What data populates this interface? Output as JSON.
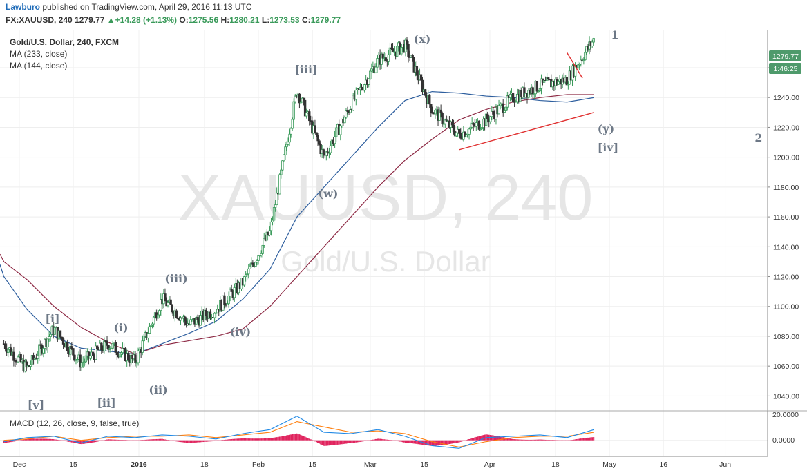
{
  "header": {
    "author": "Lawburo",
    "published_text": "published on TradingView.com, April 29, 2016 11:13 UTC",
    "symbol": "FX:XAUUSD, 240",
    "last_price": "1279.77",
    "change": "▲+14.28 (+1.13%)",
    "open_label": "O:",
    "open_value": "1275.56",
    "high_label": "H:",
    "high_value": "1280.21",
    "low_label": "L:",
    "low_value": "1273.53",
    "close_label": "C:",
    "close_value": "1279.77"
  },
  "legend": {
    "title": "Gold/U.S. Dollar, 240, FXCM",
    "ma1": "MA (233, close)",
    "ma2": "MA (144, close)"
  },
  "watermark": {
    "symbol": "XAUUSD, 240",
    "name": "Gold/U.S. Dollar"
  },
  "price_badge": {
    "price": "1279.77",
    "countdown": "1:46:25"
  },
  "wave_labels": [
    "1",
    "2",
    "(x)",
    "[iii]",
    "(w)",
    "(y)",
    "[iv]",
    "(iii)",
    "[i]",
    "(i)",
    "(iv)",
    "[v]",
    "[ii]",
    "(ii)"
  ],
  "macd": {
    "label": "MACD (12, 26, close, 9, false, true)",
    "ticks": [
      "20.0000",
      "0.0000"
    ]
  },
  "colors": {
    "up_candle": "#3a9a5a",
    "down_candle": "#333333",
    "ma233": "#8e2a45",
    "ma144": "#2d5e9e",
    "trendline": "#e03030",
    "macd_line": "#1e88e5",
    "signal_line": "#ff7f0e",
    "histogram": "#e0245e",
    "wave_label": "#6d7886",
    "badge": "#4e9a6b"
  },
  "chart_data": {
    "type": "line",
    "title": "Gold/U.S. Dollar, 240, FXCM",
    "x_ticks": [
      "Dec",
      "15",
      "2016",
      "18",
      "Feb",
      "15",
      "Mar",
      "15",
      "Apr",
      "18",
      "May",
      "16",
      "Jun"
    ],
    "y_ticks": [
      "1040.00",
      "1060.00",
      "1080.00",
      "1100.00",
      "1120.00",
      "1140.00",
      "1160.00",
      "1180.00",
      "1200.00",
      "1220.00",
      "1240.00",
      "1260.00"
    ],
    "ylim": [
      1030,
      1285
    ],
    "x": [
      "2015-11-27",
      "2015-12-03",
      "2015-12-10",
      "2015-12-17",
      "2015-12-24",
      "2015-12-31",
      "2016-01-07",
      "2016-01-14",
      "2016-01-21",
      "2016-01-28",
      "2016-02-04",
      "2016-02-11",
      "2016-02-18",
      "2016-02-25",
      "2016-03-03",
      "2016-03-10",
      "2016-03-17",
      "2016-03-24",
      "2016-03-31",
      "2016-04-07",
      "2016-04-14",
      "2016-04-21",
      "2016-04-28"
    ],
    "series": [
      {
        "values": [
          1075,
          1058,
          1085,
          1062,
          1075,
          1063,
          1105,
          1088,
          1098,
          1116,
          1150,
          1245,
          1200,
          1235,
          1265,
          1275,
          1232,
          1215,
          1225,
          1240,
          1248,
          1252,
          1279
        ]
      },
      {
        "name": "MA (144, close)",
        "values": [
          1120,
          1098,
          1080,
          1072,
          1070,
          1068,
          1075,
          1082,
          1090,
          1105,
          1125,
          1160,
          1180,
          1200,
          1220,
          1238,
          1244,
          1243,
          1241,
          1240,
          1238,
          1237,
          1240
        ]
      },
      {
        "name": "MA (233, close)",
        "values": [
          1130,
          1118,
          1100,
          1086,
          1076,
          1068,
          1074,
          1077,
          1080,
          1085,
          1100,
          1120,
          1140,
          1160,
          1180,
          1198,
          1212,
          1225,
          1232,
          1237,
          1240,
          1242,
          1242
        ]
      }
    ],
    "trendlines": [
      {
        "from": [
          "2016-03-24",
          1205
        ],
        "to": [
          "2016-04-28",
          1230
        ]
      },
      {
        "from": [
          "2016-04-21",
          1270
        ],
        "to": [
          "2016-04-25",
          1253
        ]
      }
    ],
    "macd_panel": {
      "ylim": [
        -12,
        22
      ],
      "macd": [
        -1,
        2,
        3,
        -2,
        3,
        2,
        4,
        3,
        1,
        5,
        8,
        18,
        6,
        5,
        8,
        3,
        -4,
        -6,
        2,
        3,
        4,
        2,
        8
      ],
      "signal": [
        0,
        1,
        3,
        0,
        2,
        3,
        3,
        4,
        2,
        4,
        6,
        14,
        10,
        6,
        7,
        5,
        -1,
        -5,
        -1,
        2,
        3,
        3,
        6
      ]
    }
  }
}
